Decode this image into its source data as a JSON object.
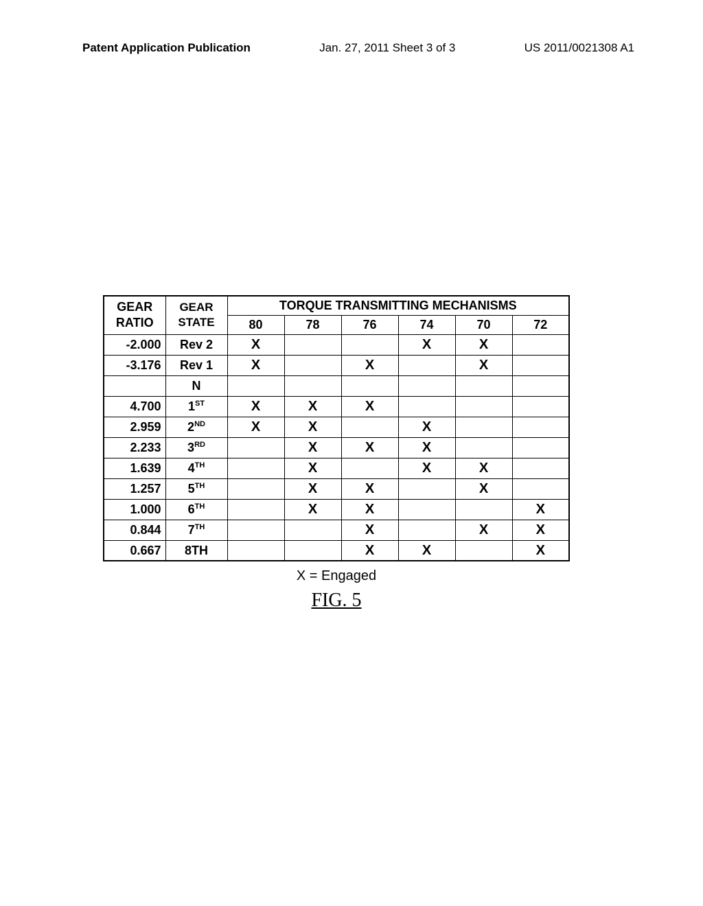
{
  "header": {
    "left": "Patent Application Publication",
    "center": "Jan. 27, 2011  Sheet 3 of 3",
    "right": "US 2011/0021308 A1"
  },
  "table": {
    "header_row1": {
      "gear_ratio": "GEAR RATIO",
      "gear_state": "GEAR STATE",
      "torque": "TORQUE TRANSMITTING MECHANISMS"
    },
    "mech_cols": [
      "80",
      "78",
      "76",
      "74",
      "70",
      "72"
    ],
    "rows": [
      {
        "ratio": "-2.000",
        "state": "Rev 2",
        "sup": "",
        "marks": [
          "X",
          "",
          "",
          "X",
          "X",
          ""
        ]
      },
      {
        "ratio": "-3.176",
        "state": "Rev 1",
        "sup": "",
        "marks": [
          "X",
          "",
          "X",
          "",
          "X",
          ""
        ]
      },
      {
        "ratio": "",
        "state": "N",
        "sup": "",
        "marks": [
          "",
          "",
          "",
          "",
          "",
          ""
        ]
      },
      {
        "ratio": "4.700",
        "state": "1",
        "sup": "ST",
        "marks": [
          "X",
          "X",
          "X",
          "",
          "",
          ""
        ]
      },
      {
        "ratio": "2.959",
        "state": "2",
        "sup": "ND",
        "marks": [
          "X",
          "X",
          "",
          "X",
          "",
          ""
        ]
      },
      {
        "ratio": "2.233",
        "state": "3",
        "sup": "RD",
        "marks": [
          "",
          "X",
          "X",
          "X",
          "",
          ""
        ]
      },
      {
        "ratio": "1.639",
        "state": "4",
        "sup": "TH",
        "marks": [
          "",
          "X",
          "",
          "X",
          "X",
          ""
        ]
      },
      {
        "ratio": "1.257",
        "state": "5",
        "sup": "TH",
        "marks": [
          "",
          "X",
          "X",
          "",
          "X",
          ""
        ]
      },
      {
        "ratio": "1.000",
        "state": "6",
        "sup": "TH",
        "marks": [
          "",
          "X",
          "X",
          "",
          "",
          "X"
        ]
      },
      {
        "ratio": "0.844",
        "state": "7",
        "sup": "TH",
        "marks": [
          "",
          "",
          "X",
          "",
          "X",
          "X"
        ]
      },
      {
        "ratio": "0.667",
        "state": "8TH",
        "sup": "",
        "marks": [
          "",
          "",
          "X",
          "X",
          "",
          "X"
        ]
      }
    ]
  },
  "legend": "X = Engaged",
  "figure_label": "FIG. 5"
}
